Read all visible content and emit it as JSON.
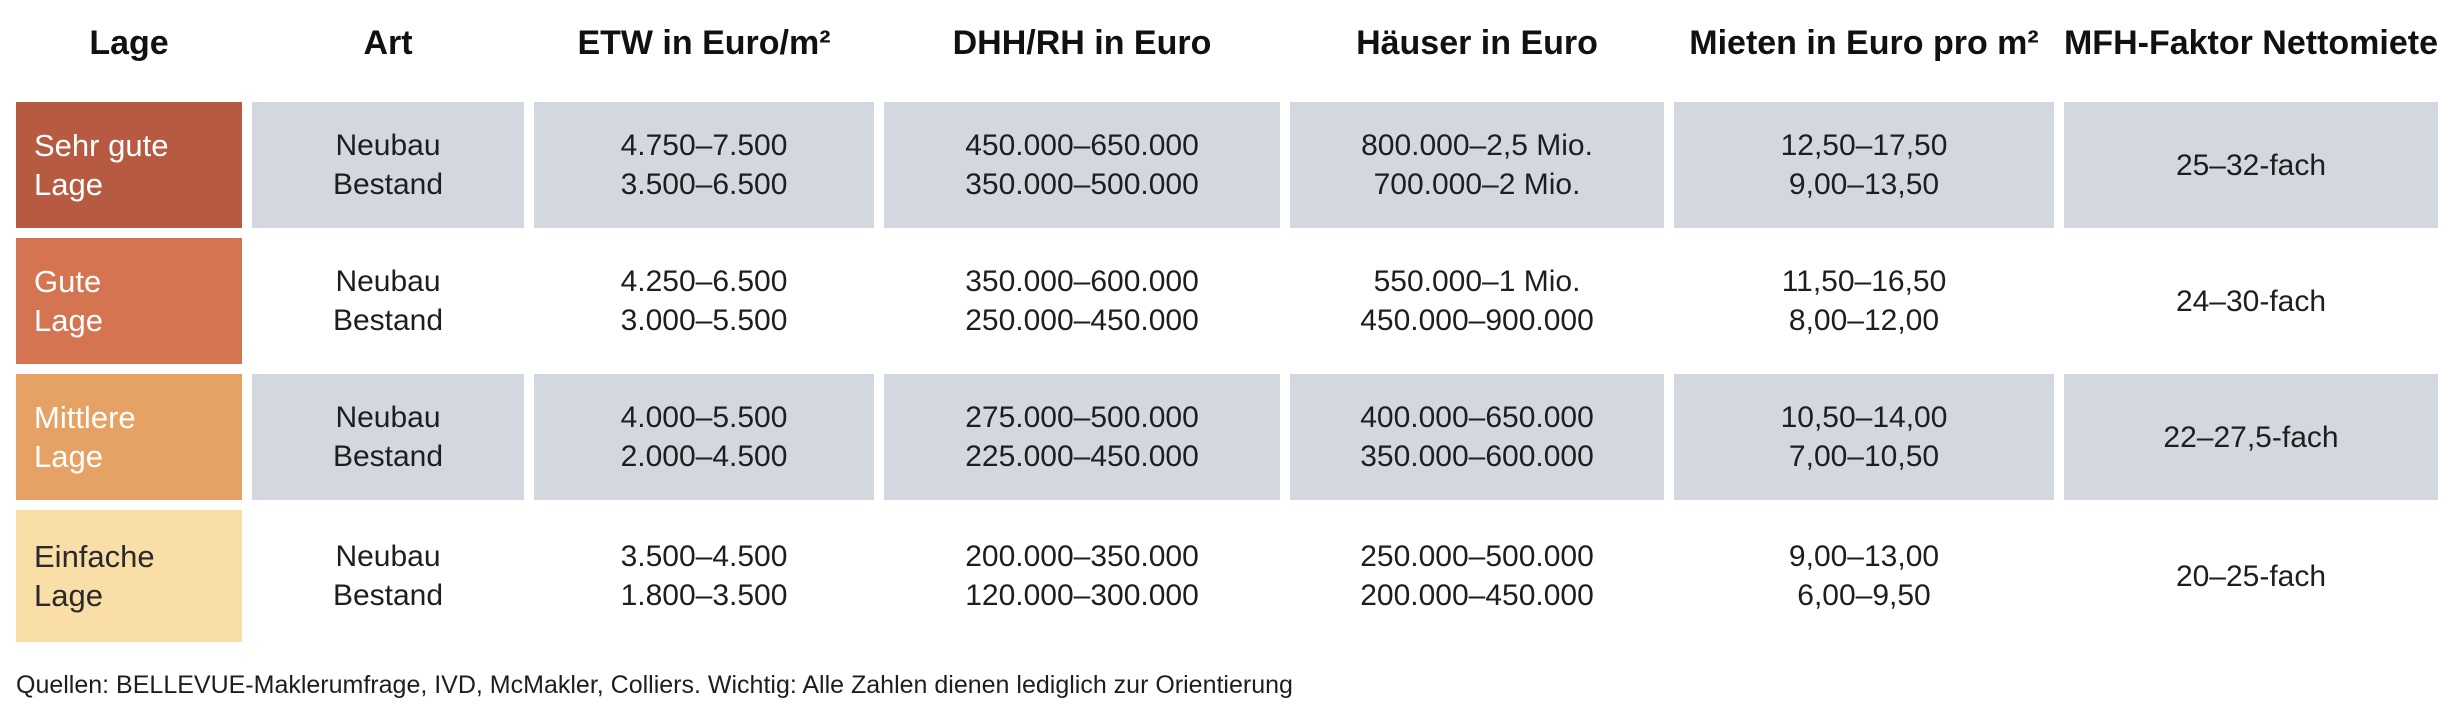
{
  "headers": {
    "lage": "Lage",
    "art": "Art",
    "etw": "ETW in Euro/m²",
    "dhh": "DHH/RH in Euro",
    "haeuser": "Häuser in Euro",
    "mieten": "Mieten in Euro pro m²",
    "mfh": "MFH-Faktor Nettomiete"
  },
  "rows": [
    {
      "lage": [
        "Sehr gute",
        "Lage"
      ],
      "art": [
        "Neubau",
        "Bestand"
      ],
      "etw": [
        "4.750–7.500",
        "3.500–6.500"
      ],
      "dhh": [
        "450.000–650.000",
        "350.000–500.000"
      ],
      "haeuser": [
        "800.000–2,5 Mio.",
        "700.000–2 Mio."
      ],
      "mieten": [
        "12,50–17,50",
        "9,00–13,50"
      ],
      "mfh": "25–32-fach",
      "color": "#b75a42",
      "text_color": "#ffffff"
    },
    {
      "lage": [
        "Gute",
        "Lage"
      ],
      "art": [
        "Neubau",
        "Bestand"
      ],
      "etw": [
        "4.250–6.500",
        "3.000–5.500"
      ],
      "dhh": [
        "350.000–600.000",
        "250.000–450.000"
      ],
      "haeuser": [
        "550.000–1 Mio.",
        "450.000–900.000"
      ],
      "mieten": [
        "11,50–16,50",
        "8,00–12,00"
      ],
      "mfh": "24–30-fach",
      "color": "#d57450",
      "text_color": "#ffffff"
    },
    {
      "lage": [
        "Mittlere",
        "Lage"
      ],
      "art": [
        "Neubau",
        "Bestand"
      ],
      "etw": [
        "4.000–5.500",
        "2.000–4.500"
      ],
      "dhh": [
        "275.000–500.000",
        "225.000–450.000"
      ],
      "haeuser": [
        "400.000–650.000",
        "350.000–600.000"
      ],
      "mieten": [
        "10,50–14,00",
        "7,00–10,50"
      ],
      "mfh": "22–27,5-fach",
      "color": "#e6a265",
      "text_color": "#ffffff"
    },
    {
      "lage": [
        "Einfache",
        "Lage"
      ],
      "art": [
        "Neubau",
        "Bestand"
      ],
      "etw": [
        "3.500–4.500",
        "1.800–3.500"
      ],
      "dhh": [
        "200.000–350.000",
        "120.000–300.000"
      ],
      "haeuser": [
        "250.000–500.000",
        "200.000–450.000"
      ],
      "mieten": [
        "9,00–13,00",
        "6,00–9,50"
      ],
      "mfh": "20–25-fach",
      "color": "#f9dea7",
      "text_color": "#2a2a2a"
    }
  ],
  "footer": "Quellen: BELLEVUE-Maklerumfrage, IVD, McMakler, Colliers. Wichtig: Alle Zahlen dienen lediglich zur Orientierung"
}
